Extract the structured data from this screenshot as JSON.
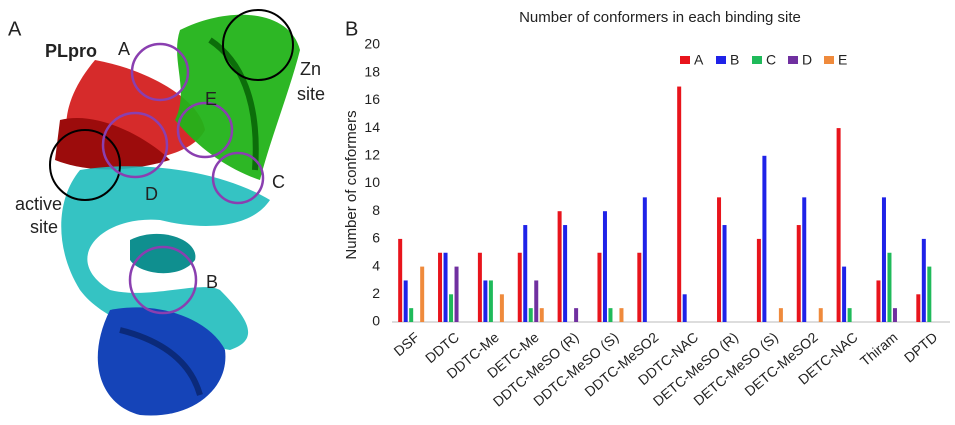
{
  "panel_a": {
    "letter": "A",
    "protein": "PLpro",
    "site_a": "A",
    "site_e": "E",
    "zn_site": [
      "Zn",
      "site"
    ],
    "active_site": [
      "active",
      "site"
    ],
    "site_d": "D",
    "site_c": "C",
    "site_b": "B"
  },
  "panel_b": {
    "letter": "B"
  },
  "chart_data": {
    "type": "bar",
    "title": "Number of conformers in each binding site",
    "y_label": "Number of conformers",
    "categories": [
      "DSF",
      "DDTC",
      "DDTC-Me",
      "DETC-Me",
      "DDTC-MeSO (R)",
      "DDTC-MeSO (S)",
      "DDTC-MeSO2",
      "DDTC-NAC",
      "DETC-MeSO (R)",
      "DETC-MeSO (S)",
      "DETC-MeSO2",
      "DETC-NAC",
      "Thiram",
      "DPTD"
    ],
    "series": [
      {
        "name": "A",
        "color": "#e8141c",
        "values": [
          6,
          5,
          5,
          5,
          8,
          5,
          5,
          17,
          9,
          6,
          7,
          14,
          3,
          2
        ]
      },
      {
        "name": "B",
        "color": "#1f22e8",
        "values": [
          3,
          5,
          3,
          7,
          7,
          8,
          9,
          2,
          7,
          12,
          9,
          4,
          9,
          6
        ]
      },
      {
        "name": "C",
        "color": "#1fba5a",
        "values": [
          1,
          2,
          3,
          1,
          0,
          1,
          0,
          0,
          0,
          0,
          0,
          1,
          5,
          4
        ]
      },
      {
        "name": "D",
        "color": "#7030a0",
        "values": [
          0,
          4,
          0,
          3,
          1,
          0,
          0,
          0,
          0,
          0,
          0,
          0,
          1,
          0
        ]
      },
      {
        "name": "E",
        "color": "#ef8a3c",
        "values": [
          4,
          0,
          2,
          1,
          0,
          1,
          0,
          0,
          0,
          1,
          1,
          0,
          0,
          0
        ]
      }
    ],
    "ylim": [
      0,
      20
    ],
    "yticks": [
      0,
      2,
      4,
      6,
      8,
      10,
      12,
      14,
      16,
      18,
      20
    ],
    "grid": false,
    "legend": "top"
  }
}
